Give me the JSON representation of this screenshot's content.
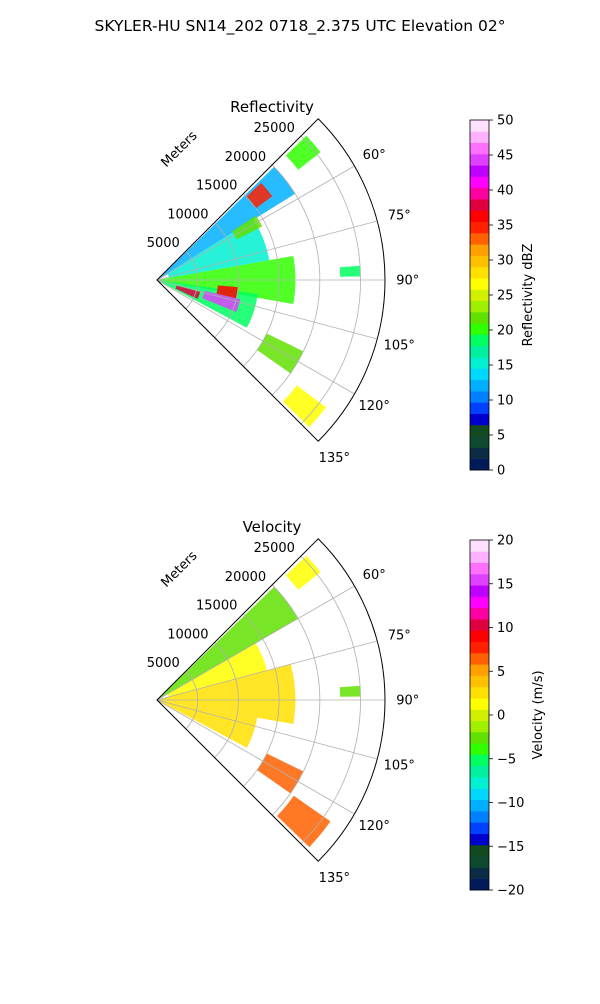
{
  "figure": {
    "title": "SKYLER-HU  SN14_202  0718_2.375 UTC Elevation 02°"
  },
  "chart_data": [
    {
      "type": "heatmap",
      "projection": "polar-sector",
      "title": "Reflectivity",
      "range_axis_label": "Meters",
      "range_ticks": [
        5000,
        10000,
        15000,
        20000,
        25000
      ],
      "range_tick_labels": [
        "5000",
        "10000",
        "15000",
        "20000",
        "25000"
      ],
      "range_max": 28000,
      "azimuth_range_deg": [
        45,
        135
      ],
      "azimuth_ticks_deg": [
        60,
        75,
        90,
        105,
        120,
        135
      ],
      "azimuth_tick_labels": [
        "60°",
        "75°",
        "90°",
        "105°",
        "120°",
        "135°"
      ],
      "grid": true,
      "colorbar": {
        "label": "Reflectivity dBZ",
        "range": [
          0,
          50
        ],
        "ticks": [
          "0",
          "5",
          "10",
          "15",
          "20",
          "25",
          "30",
          "35",
          "40",
          "45",
          "50"
        ],
        "colors": [
          "#001a5a",
          "#0a2c45",
          "#0e4a30",
          "#124a1f",
          "#0000cc",
          "#0040ff",
          "#0080ff",
          "#00b0ff",
          "#00d8ff",
          "#00f0d0",
          "#00f0a0",
          "#00ff60",
          "#30ff00",
          "#60e000",
          "#a0ee00",
          "#d0f000",
          "#ffff00",
          "#ffe000",
          "#ffc000",
          "#ffa000",
          "#ff6000",
          "#ff2000",
          "#ff0000",
          "#e00040",
          "#ff00a0",
          "#ff00ff",
          "#c000ff",
          "#e040ff",
          "#ff70ff",
          "#ffb0ff",
          "#ffe0ff"
        ]
      },
      "echo_regions": [
        {
          "az": [
            46,
            58
          ],
          "r": [
            0,
            20000
          ],
          "value": 12
        },
        {
          "az": [
            58,
            80
          ],
          "r": [
            1500,
            14000
          ],
          "value": 16
        },
        {
          "az": [
            80,
            100
          ],
          "r": [
            0,
            17000
          ],
          "value": 20
        },
        {
          "az": [
            98,
            118
          ],
          "r": [
            0,
            12500
          ],
          "value": 19
        },
        {
          "az": [
            47,
            54
          ],
          "r": [
            15000,
            17500
          ],
          "value": 34
        },
        {
          "az": [
            57,
            63
          ],
          "r": [
            11000,
            14500
          ],
          "value": 22
        },
        {
          "az": [
            95,
            103
          ],
          "r": [
            7500,
            10000
          ],
          "value": 36
        },
        {
          "az": [
            105,
            115
          ],
          "r": [
            2500,
            5500
          ],
          "value": 38
        },
        {
          "az": [
            103,
            112
          ],
          "r": [
            6000,
            10500
          ],
          "value": 44
        },
        {
          "az": [
            116,
            125
          ],
          "r": [
            15000,
            20000
          ],
          "value": 22
        },
        {
          "az": [
            127,
            134
          ],
          "r": [
            21500,
            26000
          ],
          "value": 26
        },
        {
          "az": [
            46,
            52
          ],
          "r": [
            22000,
            25500
          ],
          "value": 20
        },
        {
          "az": [
            86,
            89
          ],
          "r": [
            22500,
            25000
          ],
          "value": 18
        }
      ]
    },
    {
      "type": "heatmap",
      "projection": "polar-sector",
      "title": "Velocity",
      "range_axis_label": "Meters",
      "range_ticks": [
        5000,
        10000,
        15000,
        20000,
        25000
      ],
      "range_tick_labels": [
        "5000",
        "10000",
        "15000",
        "20000",
        "25000"
      ],
      "range_max": 28000,
      "azimuth_range_deg": [
        45,
        135
      ],
      "azimuth_ticks_deg": [
        60,
        75,
        90,
        105,
        120,
        135
      ],
      "azimuth_tick_labels": [
        "60°",
        "75°",
        "90°",
        "105°",
        "120°",
        "135°"
      ],
      "grid": true,
      "colorbar": {
        "label": "Velocity (m/s)",
        "range": [
          -20,
          20
        ],
        "ticks": [
          "−20",
          "−15",
          "−10",
          "−5",
          "0",
          "5",
          "10",
          "15",
          "20"
        ],
        "colors": [
          "#001a5a",
          "#0a2c45",
          "#0e4a30",
          "#124a1f",
          "#0000cc",
          "#0040ff",
          "#0080ff",
          "#00b0ff",
          "#00d8ff",
          "#00f0d0",
          "#00f0a0",
          "#00ff60",
          "#30ff00",
          "#60e000",
          "#a0ee00",
          "#d0f000",
          "#ffff00",
          "#ffe000",
          "#ffc000",
          "#ffa000",
          "#ff6000",
          "#ff2000",
          "#ff0000",
          "#e00040",
          "#ff00a0",
          "#ff00ff",
          "#c000ff",
          "#e040ff",
          "#ff70ff",
          "#ffb0ff",
          "#ffe0ff"
        ]
      },
      "echo_regions": [
        {
          "az": [
            46,
            60
          ],
          "r": [
            0,
            20000
          ],
          "value": -3
        },
        {
          "az": [
            60,
            75
          ],
          "r": [
            1500,
            14000
          ],
          "value": 1
        },
        {
          "az": [
            75,
            100
          ],
          "r": [
            0,
            17000
          ],
          "value": 3
        },
        {
          "az": [
            100,
            118
          ],
          "r": [
            0,
            12500
          ],
          "value": 2
        },
        {
          "az": [
            116,
            125
          ],
          "r": [
            15000,
            20000
          ],
          "value": 6
        },
        {
          "az": [
            125,
            134
          ],
          "r": [
            20500,
            26000
          ],
          "value": 7
        },
        {
          "az": [
            46,
            52
          ],
          "r": [
            22000,
            25500
          ],
          "value": 1
        },
        {
          "az": [
            86,
            89
          ],
          "r": [
            22500,
            25000
          ],
          "value": -2
        }
      ]
    }
  ]
}
